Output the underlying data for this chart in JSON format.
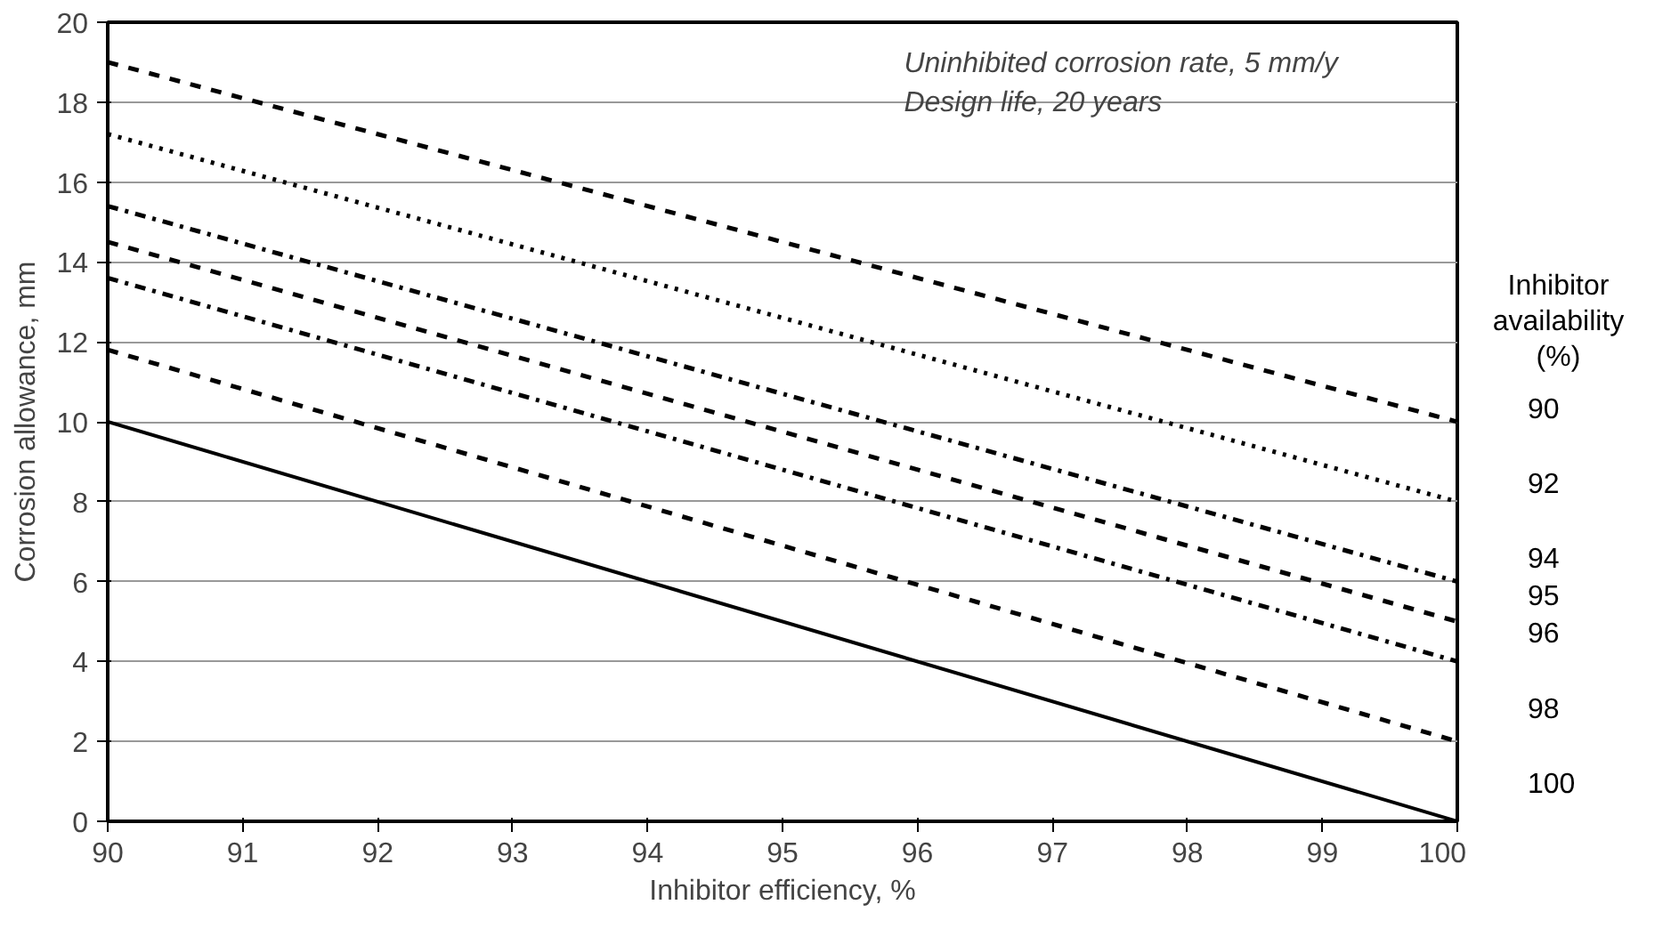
{
  "chart_data": {
    "type": "line",
    "xlabel": "Inhibitor efficiency, %",
    "ylabel": "Corrosion allowance, mm",
    "legend_title": "Inhibitor availability (%)",
    "x": [
      90,
      100
    ],
    "xlim": [
      90,
      100
    ],
    "xticks": [
      90,
      91,
      92,
      93,
      94,
      95,
      96,
      97,
      98,
      99,
      100
    ],
    "ylim": [
      0,
      20
    ],
    "yticks": [
      0,
      2,
      4,
      6,
      8,
      10,
      12,
      14,
      16,
      18,
      20
    ],
    "grid": "y",
    "marker": "none",
    "series": [
      {
        "name": "90",
        "color": "#000000",
        "line_style": "dashed",
        "values": [
          19,
          10
        ]
      },
      {
        "name": "92",
        "color": "#000000",
        "line_style": "dotted",
        "values": [
          17.2,
          8
        ]
      },
      {
        "name": "94",
        "color": "#000000",
        "line_style": "dashdot",
        "values": [
          15.4,
          6
        ]
      },
      {
        "name": "95",
        "color": "#000000",
        "line_style": "dashed",
        "values": [
          14.5,
          5
        ]
      },
      {
        "name": "96",
        "color": "#000000",
        "line_style": "dashdot",
        "values": [
          13.6,
          4
        ]
      },
      {
        "name": "98",
        "color": "#000000",
        "line_style": "dashed",
        "values": [
          11.8,
          2
        ]
      },
      {
        "name": "100",
        "color": "#000000",
        "line_style": "solid",
        "values": [
          10,
          0
        ]
      }
    ],
    "annotations": [
      "Uninhibited corrosion rate, 5 mm/y",
      "Design life, 20 years"
    ]
  }
}
